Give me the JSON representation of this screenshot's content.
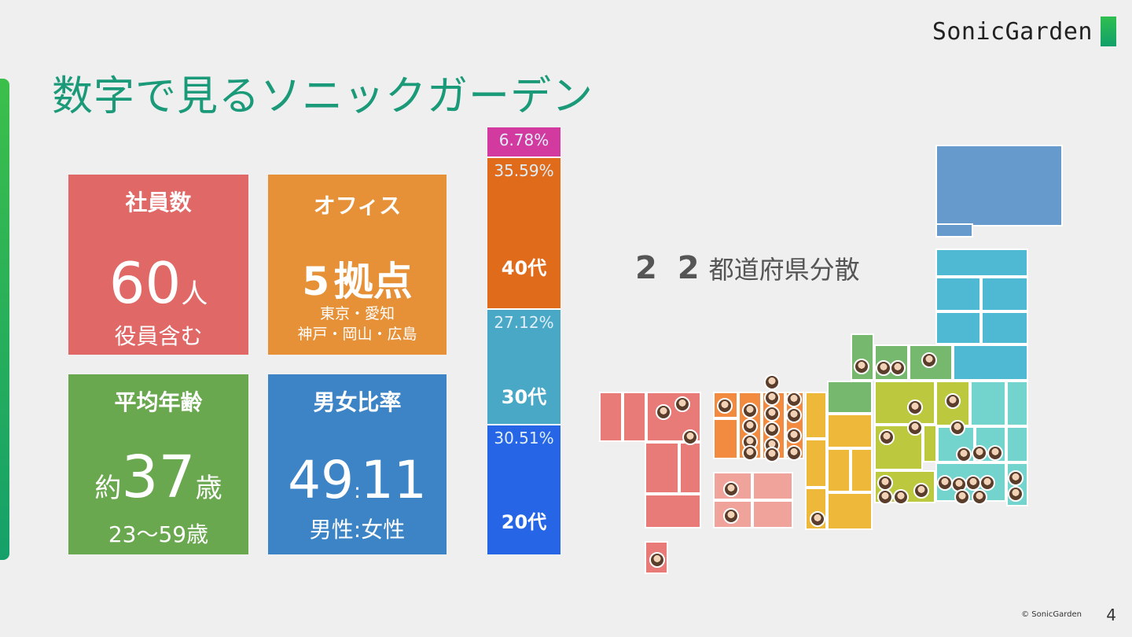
{
  "brand": {
    "name": "SonicGarden"
  },
  "title": "数字で見るソニックガーデン",
  "cards": {
    "employees": {
      "label": "社員数",
      "number": "60",
      "unit": "人",
      "sub": "役員含む"
    },
    "office": {
      "label": "オフィス",
      "number": "5",
      "unit": "拠点",
      "sub1": "東京・愛知",
      "sub2": "神戸・岡山・広島"
    },
    "age": {
      "label": "平均年齢",
      "prefix": "約",
      "number": "37",
      "unit": "歳",
      "sub": "23〜59歳"
    },
    "ratio": {
      "label": "男女比率",
      "left": "49",
      "sep": ":",
      "right": "11",
      "sub": "男性:女性"
    }
  },
  "chart_data": {
    "type": "bar",
    "orientation": "stacked-vertical",
    "segments": [
      {
        "pct_label": "6.78%",
        "value": 6.78,
        "category": "",
        "color": "#d33aa0"
      },
      {
        "pct_label": "35.59%",
        "value": 35.59,
        "category": "40代",
        "color": "#e06b1a"
      },
      {
        "pct_label": "27.12%",
        "value": 27.12,
        "category": "30代",
        "color": "#48a8c6"
      },
      {
        "pct_label": "30.51%",
        "value": 30.51,
        "category": "20代",
        "color": "#2565e6"
      }
    ]
  },
  "prefectures": {
    "count": "2 2",
    "label": "都道府県分散"
  },
  "footer": {
    "copyright": "© SonicGarden",
    "page": "4"
  },
  "colors": {
    "title": "#1a9a78",
    "hokkaido": "#6699cc",
    "tohoku": "#4fb8d2",
    "hokuriku": "#76b86e",
    "kanto": "#72d4cc",
    "chubu": "#bcc93e",
    "kinki": "#eeb93a",
    "chugoku": "#f28a3f",
    "shikoku": "#f0a39a",
    "kyushu": "#e87a77"
  }
}
